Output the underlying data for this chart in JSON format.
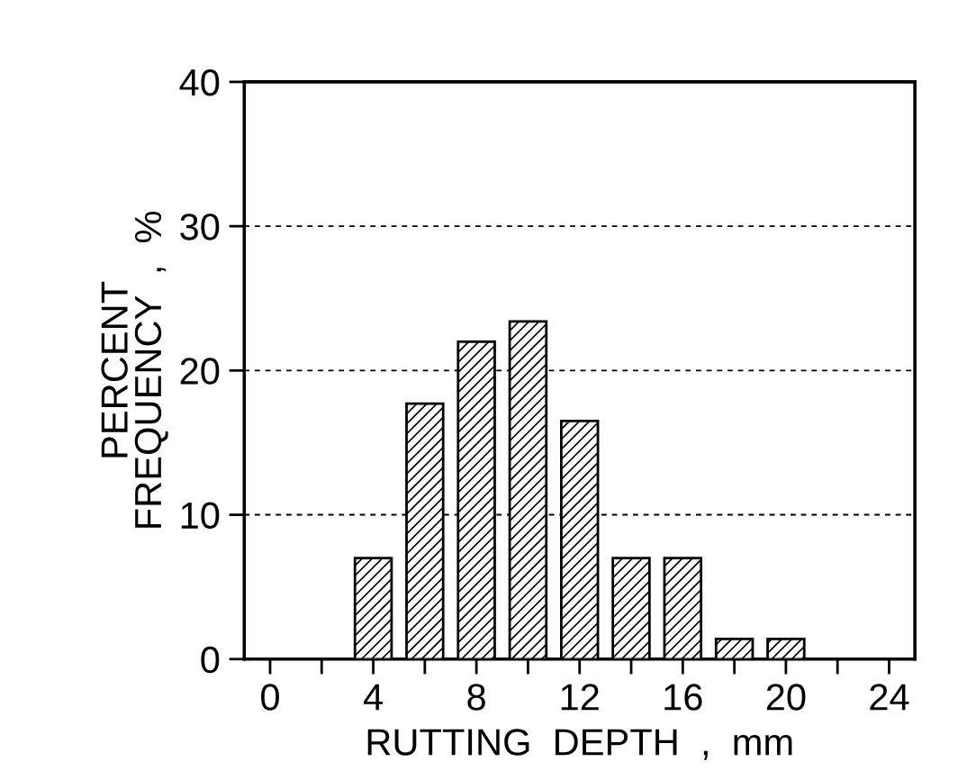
{
  "chart_data": {
    "type": "bar",
    "xlabel": "RUTTING  DEPTH  ,  mm",
    "ylabel": "PERCENT\nFREQUENCY  ,  %",
    "x": [
      4,
      6,
      8,
      10,
      12,
      14,
      16,
      18,
      20
    ],
    "values": [
      7,
      17.7,
      22,
      23.4,
      16.5,
      7,
      7,
      1.4,
      1.4
    ],
    "color": "#000000",
    "xlim": [
      -1,
      25
    ],
    "ylim": [
      0,
      40
    ],
    "xticks": [
      0,
      {
        "value": 2,
        "label": null
      },
      4,
      {
        "value": 6,
        "label": null
      },
      8,
      {
        "value": 10,
        "label": null
      },
      12,
      {
        "value": 14,
        "label": null
      },
      16,
      {
        "value": 18,
        "label": null
      },
      20,
      {
        "value": 22,
        "label": null
      },
      24
    ],
    "yticks": [
      0,
      10,
      20,
      30,
      40
    ],
    "grid": "y"
  }
}
